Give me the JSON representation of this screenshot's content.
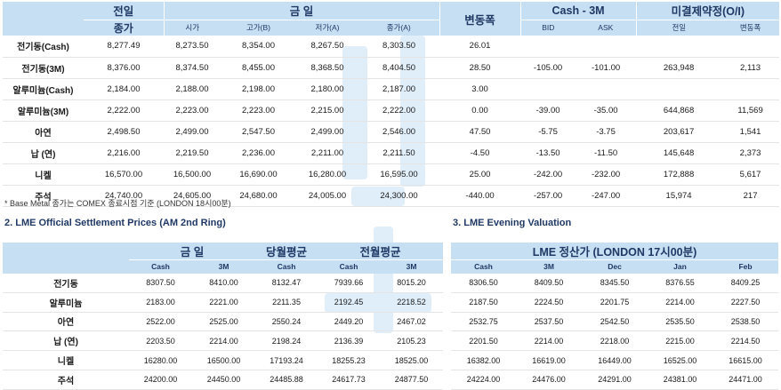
{
  "top_table": {
    "headers": {
      "prev_day_line1": "전일",
      "prev_day_line2": "종가",
      "today": "금      일",
      "change": "변동폭",
      "spread": "Cash - 3M",
      "open_interest": "미결제약정(O/I)",
      "open": "시가",
      "high": "고가(B)",
      "low": "저가(A)",
      "close": "종가(A)",
      "bid": "BID",
      "ask": "ASK",
      "oi_prev": "전일",
      "oi_change": "변동폭"
    },
    "rows": [
      {
        "name": "전기동(Cash)",
        "prev": "8,277.49",
        "open": "8,273.50",
        "high": "8,354.00",
        "low": "8,267.50",
        "close": "8,303.50",
        "change": "26.01",
        "bid": "",
        "ask": "",
        "oi": "",
        "oi_chg": ""
      },
      {
        "name": "전기동(3M)",
        "prev": "8,376.00",
        "open": "8,374.50",
        "high": "8,455.00",
        "low": "8,368.50",
        "close": "8,404.50",
        "change": "28.50",
        "bid": "-105.00",
        "ask": "-101.00",
        "oi": "263,948",
        "oi_chg": "2,113"
      },
      {
        "name": "알루미늄(Cash)",
        "prev": "2,184.00",
        "open": "2,188.00",
        "high": "2,198.00",
        "low": "2,180.00",
        "close": "2,187.00",
        "change": "3.00",
        "bid": "",
        "ask": "",
        "oi": "",
        "oi_chg": ""
      },
      {
        "name": "알루미늄(3M)",
        "prev": "2,222.00",
        "open": "2,223.00",
        "high": "2,223.00",
        "low": "2,215.00",
        "close": "2,222.00",
        "change": "0.00",
        "bid": "-39.00",
        "ask": "-35.00",
        "oi": "644,868",
        "oi_chg": "11,569"
      },
      {
        "name": "아연",
        "prev": "2,498.50",
        "open": "2,499.00",
        "high": "2,547.50",
        "low": "2,499.00",
        "close": "2,546.00",
        "change": "47.50",
        "bid": "-5.75",
        "ask": "-3.75",
        "oi": "203,617",
        "oi_chg": "1,541"
      },
      {
        "name": "납 (연)",
        "prev": "2,216.00",
        "open": "2,219.50",
        "high": "2,236.00",
        "low": "2,211.00",
        "close": "2,211.50",
        "change": "-4.50",
        "bid": "-13.50",
        "ask": "-11.50",
        "oi": "145,648",
        "oi_chg": "2,373"
      },
      {
        "name": "니켈",
        "prev": "16,570.00",
        "open": "16,500.00",
        "high": "16,690.00",
        "low": "16,280.00",
        "close": "16,595.00",
        "change": "25.00",
        "bid": "-242.00",
        "ask": "-232.00",
        "oi": "172,888",
        "oi_chg": "5,617"
      },
      {
        "name": "주석",
        "prev": "24,740.00",
        "open": "24,605.00",
        "high": "24,680.00",
        "low": "24,005.00",
        "close": "24,300.00",
        "change": "-440.00",
        "bid": "-257.00",
        "ask": "-247.00",
        "oi": "15,974",
        "oi_chg": "217"
      }
    ]
  },
  "note": "* Base Metal 종가는 COMEX 종료시점 기준 (LONDON 18시00분)",
  "settlement": {
    "title": "2. LME Official Settlement Prices (AM 2nd Ring)",
    "headers": {
      "today": "금      일",
      "month_avg": "당월평균",
      "prev_month_avg": "전월평균",
      "cash": "Cash",
      "three_m": "3M"
    },
    "rows": [
      {
        "name": "전기동",
        "cash": "8307.50",
        "m3": "8410.00",
        "month_avg": "8132.47",
        "prev_cash": "7939.66",
        "prev_3m": "8015.20"
      },
      {
        "name": "알루미늄",
        "cash": "2183.00",
        "m3": "2221.00",
        "month_avg": "2211.35",
        "prev_cash": "2192.45",
        "prev_3m": "2218.52"
      },
      {
        "name": "아연",
        "cash": "2522.00",
        "m3": "2525.00",
        "month_avg": "2550.24",
        "prev_cash": "2449.20",
        "prev_3m": "2467.02"
      },
      {
        "name": "납 (연)",
        "cash": "2203.50",
        "m3": "2214.00",
        "month_avg": "2198.24",
        "prev_cash": "2136.39",
        "prev_3m": "2105.23"
      },
      {
        "name": "니켈",
        "cash": "16280.00",
        "m3": "16500.00",
        "month_avg": "17193.24",
        "prev_cash": "18255.23",
        "prev_3m": "18525.00"
      },
      {
        "name": "주석",
        "cash": "24200.00",
        "m3": "24450.00",
        "month_avg": "24485.88",
        "prev_cash": "24617.73",
        "prev_3m": "24877.50"
      }
    ]
  },
  "evening": {
    "title": "3. LME Evening Valuation",
    "header": "LME 정산가 (LONDON 17시00분)",
    "columns": [
      "Cash",
      "3M",
      "Dec",
      "Jan",
      "Feb"
    ],
    "rows": [
      [
        "8306.50",
        "8409.50",
        "8345.50",
        "8376.55",
        "8409.25"
      ],
      [
        "2187.50",
        "2224.50",
        "2201.75",
        "2214.00",
        "2227.50"
      ],
      [
        "2532.75",
        "2537.50",
        "2542.50",
        "2535.50",
        "2538.50"
      ],
      [
        "2201.50",
        "2214.00",
        "2218.00",
        "2215.00",
        "2214.50"
      ],
      [
        "16382.00",
        "16619.00",
        "16449.00",
        "16525.00",
        "16615.00"
      ],
      [
        "24224.00",
        "24476.00",
        "24291.00",
        "24381.00",
        "24471.00"
      ]
    ]
  },
  "colors": {
    "header_bg": "#c6dff3",
    "header_text": "#1f3864",
    "watermark": "#d6e9f8"
  }
}
